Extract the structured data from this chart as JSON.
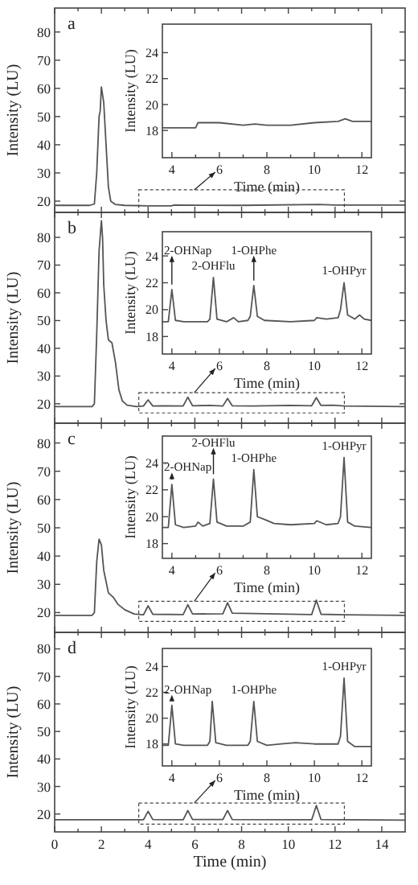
{
  "chart_data": [
    {
      "type": "line",
      "title": "a",
      "ylabel": "Intensity (LU)",
      "xlim": [
        0,
        15
      ],
      "ylim": [
        16,
        88.5
      ],
      "xticks": [
        0,
        {
          "value": 1,
          "label": null
        },
        2,
        {
          "value": 3,
          "label": null
        },
        4,
        {
          "value": 5,
          "label": null
        },
        6,
        {
          "value": 7,
          "label": null
        },
        8,
        {
          "value": 9,
          "label": null
        },
        10,
        {
          "value": 11,
          "label": null
        },
        12,
        {
          "value": 13,
          "label": null
        },
        14
      ],
      "yticks": [
        20,
        30,
        40,
        50,
        60,
        70,
        80
      ],
      "tick_labels": "y",
      "x": [
        0,
        1.5,
        1.7,
        1.8,
        1.9,
        1.95,
        2.0,
        2.1,
        2.2,
        2.3,
        2.4,
        2.6,
        3,
        4,
        5,
        5.1,
        8,
        11.3,
        12,
        15
      ],
      "series": [
        {
          "color": "#555555",
          "values": [
            18.5,
            18.5,
            19,
            30,
            50,
            52,
            60.5,
            55,
            40,
            25,
            20,
            18.8,
            18.5,
            18.3,
            18.3,
            18.6,
            18.5,
            18.8,
            18.6,
            18.6
          ]
        }
      ]
    },
    {
      "type": "line",
      "xlabel": "Time (min)",
      "ylabel": "Intensity (LU)",
      "xlim": [
        3.6,
        12.4
      ],
      "ylim": [
        15.9,
        26.2
      ],
      "xticks": [
        4,
        {
          "value": 5,
          "label": null
        },
        6,
        {
          "value": 7,
          "label": null
        },
        8,
        {
          "value": 9,
          "label": null
        },
        10,
        {
          "value": 11,
          "label": null
        },
        12
      ],
      "yticks": [
        18,
        20,
        22,
        24
      ],
      "x": [
        3.6,
        4.5,
        5.0,
        5.1,
        5.5,
        6,
        7,
        7.5,
        8,
        9,
        10,
        11,
        11.3,
        11.6,
        12.4
      ],
      "series": [
        {
          "color": "#555555",
          "values": [
            18.2,
            18.2,
            18.2,
            18.6,
            18.6,
            18.6,
            18.4,
            18.5,
            18.4,
            18.4,
            18.6,
            18.7,
            18.9,
            18.7,
            18.7
          ]
        }
      ]
    },
    {
      "type": "line",
      "title": "b",
      "ylabel": "Intensity (LU)",
      "xlim": [
        0,
        15
      ],
      "ylim": [
        13,
        89
      ],
      "xticks": [
        0,
        {
          "value": 1,
          "label": null
        },
        2,
        {
          "value": 3,
          "label": null
        },
        4,
        {
          "value": 5,
          "label": null
        },
        6,
        {
          "value": 7,
          "label": null
        },
        8,
        {
          "value": 9,
          "label": null
        },
        10,
        {
          "value": 11,
          "label": null
        },
        12,
        {
          "value": 13,
          "label": null
        },
        14
      ],
      "yticks": [
        20,
        30,
        40,
        50,
        60,
        70,
        80
      ],
      "tick_labels": "y",
      "x": [
        0,
        1.6,
        1.7,
        1.8,
        1.9,
        2.0,
        2.05,
        2.1,
        2.2,
        2.3,
        2.45,
        2.6,
        2.75,
        2.9,
        3.1,
        3.5,
        3.8,
        4.0,
        4.2,
        4.6,
        5.5,
        5.7,
        5.9,
        6.6,
        7.2,
        7.4,
        7.6,
        8.5,
        10.1,
        11.0,
        11.2,
        11.4,
        11.9,
        12.4,
        15
      ],
      "series": [
        {
          "color": "#555555",
          "values": [
            19,
            19,
            20,
            45,
            75,
            86,
            80,
            63,
            50,
            43,
            42,
            35,
            25,
            21,
            19.5,
            19,
            19.2,
            21.4,
            19.2,
            19.3,
            19.2,
            22.4,
            19.3,
            19.4,
            19.2,
            21.9,
            19.3,
            19.2,
            19.4,
            19.3,
            22.2,
            19.4,
            19.5,
            19.2,
            19
          ]
        }
      ]
    },
    {
      "type": "line",
      "xlabel": "Time (min)",
      "ylabel": "Intensity (LU)",
      "xlim": [
        3.6,
        12.4
      ],
      "ylim": [
        16.7,
        25.8
      ],
      "xticks": [
        4,
        {
          "value": 5,
          "label": null
        },
        6,
        {
          "value": 7,
          "label": null
        },
        8,
        {
          "value": 9,
          "label": null
        },
        10,
        {
          "value": 11,
          "label": null
        },
        12
      ],
      "yticks": [
        18,
        20,
        22,
        24
      ],
      "x": [
        3.6,
        3.85,
        4.0,
        4.15,
        4.5,
        5.5,
        5.6,
        5.75,
        5.9,
        6.3,
        6.6,
        6.8,
        7.2,
        7.3,
        7.45,
        7.6,
        7.9,
        9,
        10.0,
        10.1,
        10.5,
        11.0,
        11.1,
        11.25,
        11.4,
        11.7,
        11.9,
        12.1,
        12.4
      ],
      "series": [
        {
          "color": "#555555",
          "values": [
            19.1,
            19.1,
            21.5,
            19.2,
            19.1,
            19.1,
            19.3,
            22.4,
            19.3,
            19.1,
            19.4,
            19.1,
            19.2,
            19.5,
            21.8,
            19.5,
            19.2,
            19.1,
            19.2,
            19.4,
            19.3,
            19.4,
            20,
            22.0,
            19.6,
            19.3,
            19.6,
            19.3,
            19.2
          ]
        }
      ],
      "annotations": [
        {
          "text": "2-OHNap",
          "x": 4.0,
          "y": 21.5
        },
        {
          "text": "2-OHFlu",
          "x": 5.75,
          "y": 22.4
        },
        {
          "text": "1-OHPhe",
          "x": 7.45,
          "y": 21.8
        },
        {
          "text": "1-OHPyr",
          "x": 11.25,
          "y": 22.0
        }
      ]
    },
    {
      "type": "line",
      "title": "c",
      "ylabel": "Intensity (LU)",
      "xlim": [
        0,
        15
      ],
      "ylim": [
        13,
        87
      ],
      "xticks": [
        0,
        {
          "value": 1,
          "label": null
        },
        2,
        {
          "value": 3,
          "label": null
        },
        4,
        {
          "value": 5,
          "label": null
        },
        6,
        {
          "value": 7,
          "label": null
        },
        8,
        {
          "value": 9,
          "label": null
        },
        10,
        {
          "value": 11,
          "label": null
        },
        12,
        {
          "value": 13,
          "label": null
        },
        14
      ],
      "yticks": [
        20,
        30,
        40,
        50,
        60,
        70,
        80
      ],
      "tick_labels": "y",
      "x": [
        0,
        1.6,
        1.7,
        1.8,
        1.9,
        2.0,
        2.1,
        2.3,
        2.5,
        2.7,
        3.0,
        3.4,
        3.8,
        4.0,
        4.2,
        5.5,
        5.7,
        5.9,
        7.2,
        7.4,
        7.6,
        11.0,
        11.2,
        11.4,
        12.4,
        15
      ],
      "series": [
        {
          "color": "#555555",
          "values": [
            19,
            19,
            20,
            38,
            46,
            44,
            35,
            27,
            25.5,
            23,
            21,
            19.5,
            19.2,
            22.4,
            19.4,
            19.3,
            22.8,
            19.5,
            19.6,
            23.5,
            19.8,
            19.3,
            24.4,
            19.4,
            19.2,
            19
          ]
        }
      ]
    },
    {
      "type": "line",
      "xlabel": "Time (min)",
      "ylabel": "Intensity (LU)",
      "xlim": [
        3.6,
        12.4
      ],
      "ylim": [
        16.9,
        26
      ],
      "xticks": [
        4,
        {
          "value": 5,
          "label": null
        },
        6,
        {
          "value": 7,
          "label": null
        },
        8,
        {
          "value": 9,
          "label": null
        },
        10,
        {
          "value": 11,
          "label": null
        },
        12
      ],
      "yticks": [
        18,
        20,
        22,
        24
      ],
      "x": [
        3.6,
        3.85,
        4.0,
        4.15,
        4.5,
        5.0,
        5.1,
        5.3,
        5.6,
        5.75,
        5.9,
        6.3,
        7.0,
        7.3,
        7.45,
        7.6,
        7.9,
        8.3,
        9,
        10.0,
        10.1,
        10.5,
        11.0,
        11.1,
        11.25,
        11.4,
        11.7,
        12.4
      ],
      "series": [
        {
          "color": "#555555",
          "values": [
            19.2,
            19.2,
            22.4,
            19.4,
            19.2,
            19.3,
            19.6,
            19.3,
            19.5,
            22.8,
            19.6,
            19.3,
            19.3,
            19.6,
            23.5,
            20,
            19.8,
            19.5,
            19.4,
            19.5,
            19.7,
            19.4,
            19.5,
            20,
            24.4,
            19.6,
            19.3,
            19.2
          ]
        }
      ],
      "annotations": [
        {
          "text": "2-OHNap",
          "x": 4.0,
          "y": 22.4
        },
        {
          "text": "2-OHFlu",
          "x": 5.75,
          "y": 22.8
        },
        {
          "text": "1-OHPhe",
          "x": 7.45,
          "y": 23.5
        },
        {
          "text": "1-OHPyr",
          "x": 11.25,
          "y": 24.4
        }
      ]
    },
    {
      "type": "line",
      "title": "d",
      "xlabel": "Time (min)",
      "ylabel": "Intensity (LU)",
      "xlim": [
        0,
        15
      ],
      "ylim": [
        13.5,
        86
      ],
      "xticks": [
        0,
        {
          "value": 1,
          "label": null
        },
        2,
        {
          "value": 3,
          "label": null
        },
        4,
        {
          "value": 5,
          "label": null
        },
        6,
        {
          "value": 7,
          "label": null
        },
        8,
        {
          "value": 9,
          "label": null
        },
        10,
        {
          "value": 11,
          "label": null
        },
        12,
        {
          "value": 13,
          "label": null
        },
        14
      ],
      "yticks": [
        20,
        30,
        40,
        50,
        60,
        70,
        80
      ],
      "x": [
        0,
        3.8,
        4.0,
        4.2,
        5.5,
        5.7,
        5.9,
        7.2,
        7.4,
        7.6,
        11.0,
        11.2,
        11.4,
        15
      ],
      "series": [
        {
          "color": "#555555",
          "values": [
            17.9,
            17.9,
            21,
            18,
            17.9,
            21.3,
            18,
            18,
            21.3,
            18,
            17.9,
            23.1,
            18,
            17.8
          ]
        }
      ]
    },
    {
      "type": "line",
      "xlabel": "Time (min)",
      "ylabel": "Intensity (LU)",
      "xlim": [
        3.6,
        12.4
      ],
      "ylim": [
        16.3,
        25.4
      ],
      "xticks": [
        4,
        {
          "value": 5,
          "label": null
        },
        6,
        {
          "value": 7,
          "label": null
        },
        8,
        {
          "value": 9,
          "label": null
        },
        10,
        {
          "value": 11,
          "label": null
        },
        12
      ],
      "yticks": [
        18,
        20,
        22,
        24
      ],
      "x": [
        3.6,
        3.85,
        4.0,
        4.15,
        4.5,
        5.5,
        5.6,
        5.7,
        5.85,
        6.3,
        7.2,
        7.3,
        7.45,
        7.6,
        8,
        8.6,
        9.2,
        10,
        11.0,
        11.1,
        11.25,
        11.4,
        11.7,
        12.4
      ],
      "series": [
        {
          "color": "#555555",
          "values": [
            17.9,
            17.9,
            21.0,
            18,
            17.9,
            17.9,
            18.2,
            21.3,
            18.1,
            17.9,
            17.9,
            18.2,
            21.3,
            18.2,
            17.9,
            18.0,
            18.1,
            18.0,
            18.0,
            18.6,
            23.1,
            18.2,
            17.8,
            17.8
          ]
        }
      ],
      "annotations": [
        {
          "text": "2-OHNap",
          "x": 4.0,
          "y": 21.0
        },
        {
          "text": "1-OHPhe",
          "x": 7.45,
          "y": 21.3
        },
        {
          "text": "1-OHPyr",
          "x": 11.25,
          "y": 23.1
        }
      ]
    }
  ]
}
